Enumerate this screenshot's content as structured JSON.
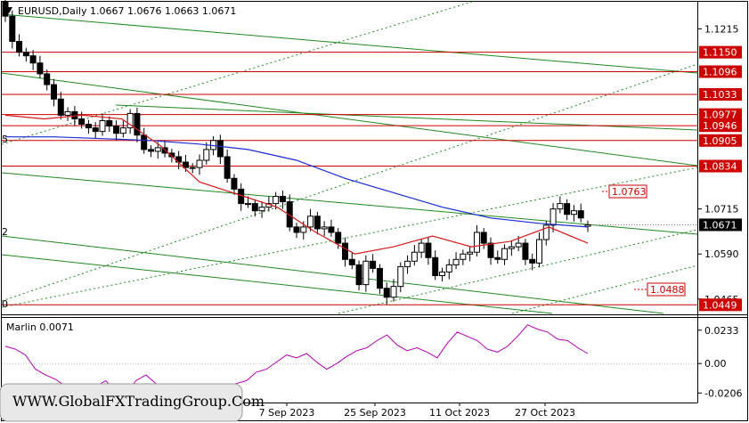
{
  "header": {
    "title": "EURUSD,Daily  1.0667 1.0676 1.0663 1.0671",
    "indicator_label": "Marlin 0.0071"
  },
  "watermark": "WWW.GlobalFXTradingGroup.Com",
  "colors": {
    "background": "#ffffff",
    "candle": "#000000",
    "ma_blue": "#1a2bd6",
    "ma_red": "#d61a1a",
    "channel_green": "#1f8a1f",
    "level_red": "#cc0000",
    "oscillator": "#b000b0",
    "current_price_box": "#000000"
  },
  "chart_data": [
    {
      "type": "candlestick",
      "symbol": "EURUSD",
      "timeframe": "Daily",
      "x_tick_labels": [
        "7 Sep 2023",
        "25 Sep 2023",
        "11 Oct 2023",
        "27 Oct 2023"
      ],
      "y_ticks": [
        "1.1215",
        "1.0715",
        "1.0590",
        "1.0465"
      ],
      "ylim": [
        1.0425,
        1.1285
      ],
      "current_price": "1.0671",
      "last_bar": {
        "open": 1.0667,
        "high": 1.0676,
        "low": 1.0663,
        "close": 1.0671
      },
      "levels": [
        "1.1150",
        "1.1096",
        "1.1033",
        "1.0977",
        "1.0946",
        "1.0905",
        "1.0834",
        "1.0449"
      ],
      "annotations": [
        "1.0763",
        "1.0488"
      ],
      "left_edge_labels": [
        "5",
        "2",
        "0"
      ],
      "closes": [
        1.125,
        1.118,
        1.115,
        1.114,
        1.112,
        1.109,
        1.106,
        1.102,
        1.0975,
        1.0985,
        1.0965,
        1.095,
        1.094,
        1.093,
        1.096,
        1.0945,
        1.0925,
        1.094,
        1.098,
        1.092,
        1.088,
        1.0875,
        1.0885,
        1.087,
        1.086,
        1.0845,
        1.083,
        1.083,
        1.085,
        1.088,
        1.0905,
        1.086,
        1.08,
        1.077,
        1.073,
        1.073,
        1.071,
        1.072,
        1.073,
        1.075,
        1.0735,
        1.0665,
        1.065,
        1.0665,
        1.0695,
        1.066,
        1.0665,
        1.065,
        1.062,
        1.0575,
        1.056,
        1.0505,
        1.057,
        1.055,
        1.0495,
        1.047,
        1.05,
        1.0555,
        1.057,
        1.0595,
        1.062,
        1.058,
        1.053,
        1.054,
        1.056,
        1.0575,
        1.059,
        1.0595,
        1.065,
        1.062,
        1.058,
        1.0575,
        1.0605,
        1.061,
        1.062,
        1.0575,
        1.0565,
        1.063,
        1.067,
        1.0715,
        1.073,
        1.07,
        1.071,
        1.069,
        1.0671
      ],
      "ma_blue": [
        1.0915,
        1.0915,
        1.091,
        1.0905,
        1.0895,
        1.088,
        1.085,
        1.08,
        1.076,
        1.072,
        1.069,
        1.0675,
        1.0665
      ],
      "ma_red": [
        1.0975,
        1.0965,
        1.0975,
        1.0965,
        1.089,
        1.079,
        1.0755,
        1.072,
        1.065,
        1.059,
        1.061,
        1.064,
        1.061,
        1.0625,
        1.0665,
        1.062
      ]
    },
    {
      "type": "line",
      "name": "Marlin",
      "current_value": "0.0071",
      "y_ticks": [
        "0.0233",
        "0.00",
        "-0.0206"
      ],
      "ylim": [
        -0.026,
        0.03
      ],
      "values": [
        0.012,
        0.01,
        0.006,
        -0.004,
        -0.008,
        -0.011,
        -0.016,
        -0.019,
        -0.02,
        -0.016,
        -0.012,
        -0.02,
        -0.022,
        -0.012,
        -0.008,
        -0.014,
        -0.018,
        -0.02,
        -0.021,
        -0.02,
        -0.018,
        -0.017,
        -0.016,
        -0.014,
        -0.012,
        -0.006,
        -0.004,
        0.001,
        0.006,
        0.004,
        0.007,
        0.001,
        -0.004,
        0.0,
        0.005,
        0.009,
        0.011,
        0.016,
        0.02,
        0.013,
        0.009,
        0.011,
        0.008,
        0.004,
        0.014,
        0.022,
        0.019,
        0.016,
        0.01,
        0.008,
        0.012,
        0.019,
        0.027,
        0.024,
        0.022,
        0.017,
        0.016,
        0.011,
        0.007
      ]
    }
  ]
}
